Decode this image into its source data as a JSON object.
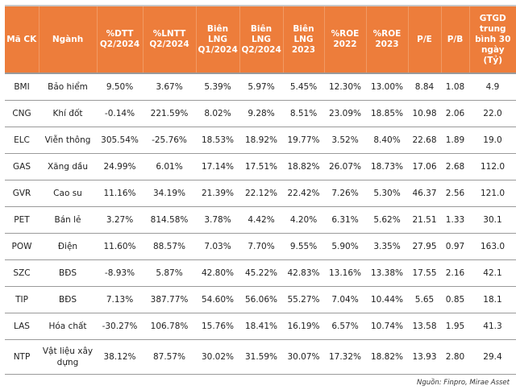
{
  "header": {
    "colors": {
      "header_bg": "#ED7D3B",
      "header_text": "#FFFFFF"
    },
    "columns": [
      "Mã CK",
      "Ngành",
      "%DTT Q2/2024",
      "%LNTT Q2/2024",
      "Biên LNG Q1/2024",
      "Biên LNG Q2/2024",
      "Biên LNG 2023",
      "%ROE 2022",
      "%ROE 2023",
      "P/E",
      "P/B",
      "GTGD trung bình 30 ngày (Tỷ)"
    ]
  },
  "rows": [
    [
      "BMI",
      "Bảo hiểm",
      "9.50%",
      "3.67%",
      "5.39%",
      "5.97%",
      "5.45%",
      "12.30%",
      "13.00%",
      "8.84",
      "1.08",
      "4.9"
    ],
    [
      "CNG",
      "Khí đốt",
      "-0.14%",
      "221.59%",
      "8.02%",
      "9.28%",
      "8.51%",
      "23.09%",
      "18.85%",
      "10.98",
      "2.06",
      "22.0"
    ],
    [
      "ELC",
      "Viễn thông",
      "305.54%",
      "-25.76%",
      "18.53%",
      "18.92%",
      "19.77%",
      "3.52%",
      "8.40%",
      "22.68",
      "1.89",
      "19.0"
    ],
    [
      "GAS",
      "Xăng dầu",
      "24.99%",
      "6.01%",
      "17.14%",
      "17.51%",
      "18.82%",
      "26.07%",
      "18.73%",
      "17.06",
      "2.68",
      "112.0"
    ],
    [
      "GVR",
      "Cao su",
      "11.16%",
      "34.19%",
      "21.39%",
      "22.12%",
      "22.42%",
      "7.26%",
      "5.30%",
      "46.37",
      "2.56",
      "121.0"
    ],
    [
      "PET",
      "Bán lẻ",
      "3.27%",
      "814.58%",
      "3.78%",
      "4.42%",
      "4.20%",
      "6.31%",
      "5.62%",
      "21.51",
      "1.33",
      "30.1"
    ],
    [
      "POW",
      "Điện",
      "11.60%",
      "88.57%",
      "7.03%",
      "7.70%",
      "9.55%",
      "5.90%",
      "3.35%",
      "27.95",
      "0.97",
      "163.0"
    ],
    [
      "SZC",
      "BĐS",
      "-8.93%",
      "5.87%",
      "42.80%",
      "45.22%",
      "42.83%",
      "13.16%",
      "13.38%",
      "17.55",
      "2.16",
      "42.1"
    ],
    [
      "TIP",
      "BĐS",
      "7.13%",
      "387.77%",
      "54.60%",
      "56.06%",
      "55.27%",
      "7.04%",
      "10.44%",
      "5.65",
      "0.85",
      "18.1"
    ],
    [
      "LAS",
      "Hóa chất",
      "-30.27%",
      "106.78%",
      "15.76%",
      "18.41%",
      "16.19%",
      "6.57%",
      "10.74%",
      "13.58",
      "1.95",
      "41.3"
    ],
    [
      "NTP",
      "Vật liệu xây dựng",
      "38.12%",
      "87.57%",
      "30.02%",
      "31.59%",
      "30.07%",
      "17.32%",
      "18.82%",
      "13.93",
      "2.80",
      "29.4"
    ]
  ],
  "source": "Nguồn: Finpro, Mirae Asset"
}
